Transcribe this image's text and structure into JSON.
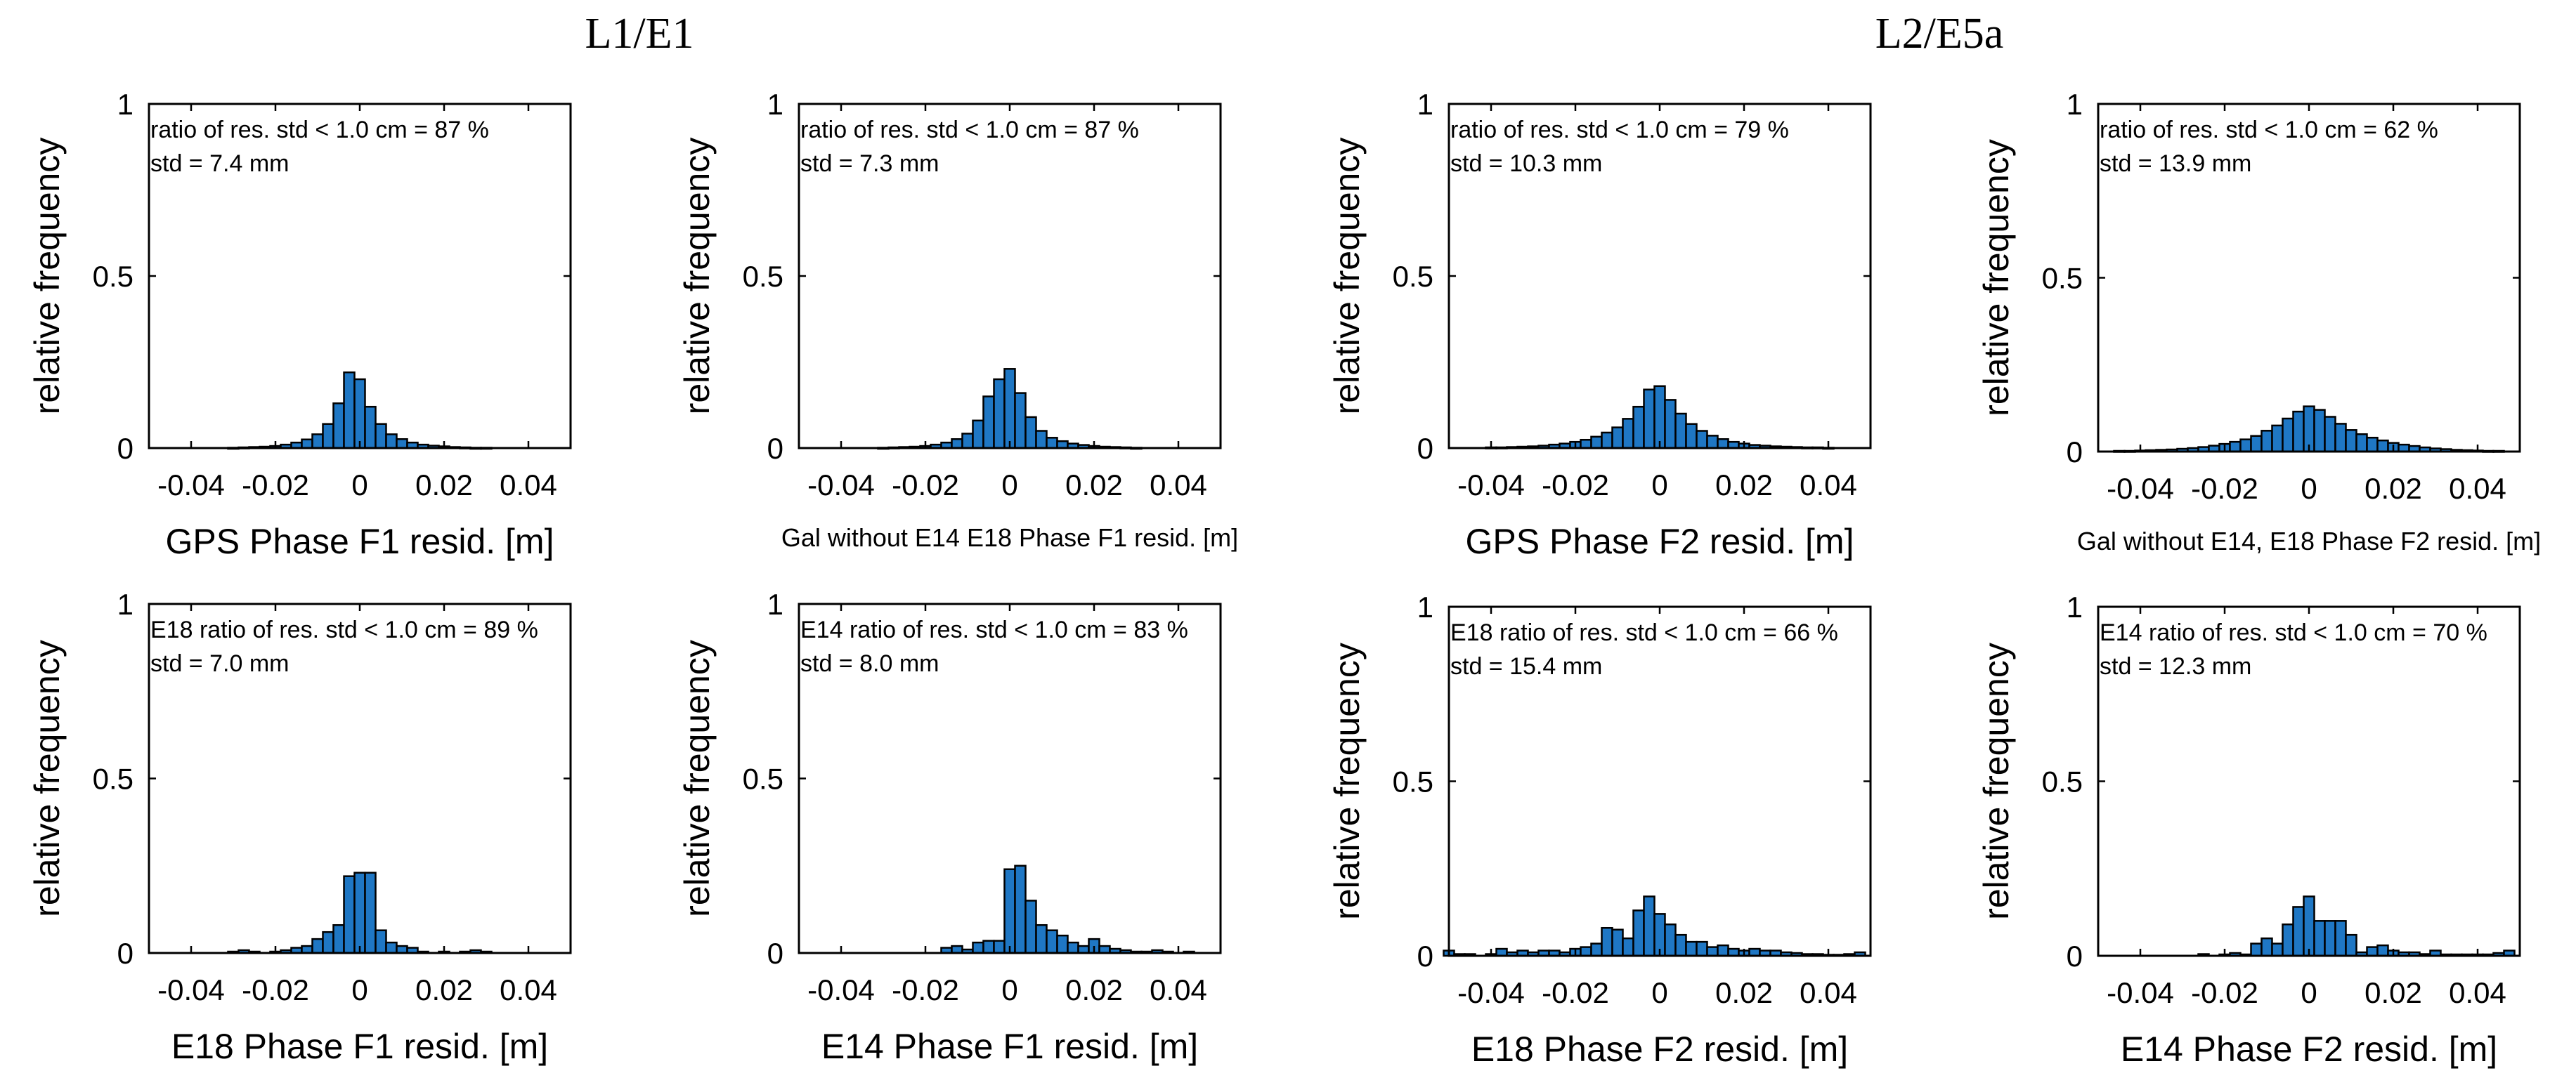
{
  "titles": [
    "L1/E1",
    "L2/E5a"
  ],
  "chart_data": [
    {
      "type": "bar",
      "group": "L1/E1",
      "xlabel": "GPS Phase F1 resid. [m]",
      "ylabel": "relative frequency",
      "xlim": [
        -0.05,
        0.05
      ],
      "ylim": [
        0,
        1
      ],
      "xticks": [
        "-0.04",
        "-0.02",
        "0",
        "0.02",
        "0.04"
      ],
      "yticks": [
        "0",
        "0.5",
        "1"
      ],
      "annotations": [
        "ratio of res. std < 1.0 cm = 87 %",
        "std = 7.4 mm"
      ],
      "bin_width": 0.0025,
      "x": [
        -0.03,
        -0.0275,
        -0.025,
        -0.0225,
        -0.02,
        -0.0175,
        -0.015,
        -0.0125,
        -0.01,
        -0.0075,
        -0.005,
        -0.0025,
        0,
        0.0025,
        0.005,
        0.0075,
        0.01,
        0.0125,
        0.015,
        0.0175,
        0.02,
        0.0225,
        0.025,
        0.0275,
        0.03
      ],
      "values": [
        0.001,
        0.002,
        0.003,
        0.004,
        0.006,
        0.01,
        0.016,
        0.025,
        0.04,
        0.07,
        0.13,
        0.22,
        0.2,
        0.12,
        0.07,
        0.04,
        0.026,
        0.016,
        0.01,
        0.007,
        0.005,
        0.003,
        0.002,
        0.001,
        0.001
      ]
    },
    {
      "type": "bar",
      "group": "L1/E1",
      "xlabel": "Gal without E14 E18 Phase F1 resid. [m]",
      "ylabel": "relative frequency",
      "xlim": [
        -0.05,
        0.05
      ],
      "ylim": [
        0,
        1
      ],
      "xticks": [
        "-0.04",
        "-0.02",
        "0",
        "0.02",
        "0.04"
      ],
      "yticks": [
        "0",
        "0.5",
        "1"
      ],
      "annotations": [
        "ratio of res. std < 1.0 cm = 87 %",
        "std = 7.3 mm"
      ],
      "bin_width": 0.0025,
      "x": [
        -0.03,
        -0.0275,
        -0.025,
        -0.0225,
        -0.02,
        -0.0175,
        -0.015,
        -0.0125,
        -0.01,
        -0.0075,
        -0.005,
        -0.0025,
        0,
        0.0025,
        0.005,
        0.0075,
        0.01,
        0.0125,
        0.015,
        0.0175,
        0.02,
        0.0225,
        0.025,
        0.0275,
        0.03
      ],
      "values": [
        0.001,
        0.002,
        0.003,
        0.004,
        0.006,
        0.01,
        0.016,
        0.026,
        0.042,
        0.08,
        0.15,
        0.2,
        0.23,
        0.16,
        0.09,
        0.05,
        0.03,
        0.02,
        0.013,
        0.009,
        0.006,
        0.004,
        0.003,
        0.002,
        0.001
      ]
    },
    {
      "type": "bar",
      "group": "L2/E5a",
      "xlabel": "GPS Phase F2 resid. [m]",
      "ylabel": "relative frequency",
      "xlim": [
        -0.05,
        0.05
      ],
      "ylim": [
        0,
        1
      ],
      "xticks": [
        "-0.04",
        "-0.02",
        "0",
        "0.02",
        "0.04"
      ],
      "yticks": [
        "0",
        "0.5",
        "1"
      ],
      "annotations": [
        "ratio of res. std < 1.0 cm = 79 %",
        "std = 10.3 mm"
      ],
      "bin_width": 0.0025,
      "x": [
        -0.04,
        -0.0375,
        -0.035,
        -0.0325,
        -0.03,
        -0.0275,
        -0.025,
        -0.0225,
        -0.02,
        -0.0175,
        -0.015,
        -0.0125,
        -0.01,
        -0.0075,
        -0.005,
        -0.0025,
        0,
        0.0025,
        0.005,
        0.0075,
        0.01,
        0.0125,
        0.015,
        0.0175,
        0.02,
        0.0225,
        0.025,
        0.0275,
        0.03,
        0.0325,
        0.035,
        0.0375,
        0.04
      ],
      "values": [
        0.002,
        0.002,
        0.003,
        0.004,
        0.005,
        0.007,
        0.01,
        0.013,
        0.018,
        0.024,
        0.033,
        0.045,
        0.06,
        0.085,
        0.12,
        0.17,
        0.18,
        0.14,
        0.1,
        0.07,
        0.05,
        0.036,
        0.026,
        0.018,
        0.013,
        0.009,
        0.007,
        0.005,
        0.004,
        0.003,
        0.002,
        0.002,
        0.001
      ]
    },
    {
      "type": "bar",
      "group": "L2/E5a",
      "xlabel": "Gal without E14, E18 Phase F2 resid. [m]",
      "ylabel": "relative frequency",
      "xlim": [
        -0.05,
        0.05
      ],
      "ylim": [
        0,
        1
      ],
      "xticks": [
        "-0.04",
        "-0.02",
        "0",
        "0.02",
        "0.04"
      ],
      "yticks": [
        "0",
        "0.5",
        "1"
      ],
      "annotations": [
        "ratio of res. std < 1.0 cm = 62 %",
        "std = 13.9 mm"
      ],
      "bin_width": 0.0025,
      "x": [
        -0.045,
        -0.0425,
        -0.04,
        -0.0375,
        -0.035,
        -0.0325,
        -0.03,
        -0.0275,
        -0.025,
        -0.0225,
        -0.02,
        -0.0175,
        -0.015,
        -0.0125,
        -0.01,
        -0.0075,
        -0.005,
        -0.0025,
        0,
        0.0025,
        0.005,
        0.0075,
        0.01,
        0.0125,
        0.015,
        0.0175,
        0.02,
        0.0225,
        0.025,
        0.0275,
        0.03,
        0.0325,
        0.035,
        0.0375,
        0.04,
        0.0425,
        0.045
      ],
      "values": [
        0.002,
        0.002,
        0.003,
        0.004,
        0.005,
        0.006,
        0.008,
        0.01,
        0.013,
        0.017,
        0.022,
        0.028,
        0.035,
        0.045,
        0.06,
        0.075,
        0.095,
        0.115,
        0.13,
        0.12,
        0.1,
        0.08,
        0.062,
        0.05,
        0.04,
        0.032,
        0.025,
        0.02,
        0.016,
        0.012,
        0.009,
        0.007,
        0.005,
        0.004,
        0.003,
        0.002,
        0.002
      ]
    },
    {
      "type": "bar",
      "group": "L1/E1",
      "xlabel": "E18 Phase F1 resid. [m]",
      "ylabel": "relative frequency",
      "xlim": [
        -0.05,
        0.05
      ],
      "ylim": [
        0,
        1
      ],
      "xticks": [
        "-0.04",
        "-0.02",
        "0",
        "0.02",
        "0.04"
      ],
      "yticks": [
        "0",
        "0.5",
        "1"
      ],
      "annotations": [
        "E18 ratio of res. std < 1.0 cm = 89 %",
        "std = 7.0 mm"
      ],
      "bin_width": 0.0025,
      "x": [
        -0.03,
        -0.0275,
        -0.025,
        -0.0225,
        -0.02,
        -0.0175,
        -0.015,
        -0.0125,
        -0.01,
        -0.0075,
        -0.005,
        -0.0025,
        0,
        0.0025,
        0.005,
        0.0075,
        0.01,
        0.0125,
        0.015,
        0.0175,
        0.02,
        0.0225,
        0.025,
        0.0275,
        0.03
      ],
      "values": [
        0.004,
        0.008,
        0.004,
        0,
        0.004,
        0.008,
        0.015,
        0.02,
        0.04,
        0.06,
        0.08,
        0.22,
        0.23,
        0.23,
        0.065,
        0.03,
        0.02,
        0.015,
        0.004,
        0,
        0.004,
        0,
        0.004,
        0.008,
        0.004
      ]
    },
    {
      "type": "bar",
      "group": "L1/E1",
      "xlabel": "E14 Phase F1 resid. [m]",
      "ylabel": "relative frequency",
      "xlim": [
        -0.05,
        0.05
      ],
      "ylim": [
        0,
        1
      ],
      "xticks": [
        "-0.04",
        "-0.02",
        "0",
        "0.02",
        "0.04"
      ],
      "yticks": [
        "0",
        "0.5",
        "1"
      ],
      "annotations": [
        "E14 ratio of res. std < 1.0 cm = 83 %",
        "std = 8.0 mm"
      ],
      "bin_width": 0.0025,
      "x": [
        -0.015,
        -0.0125,
        -0.01,
        -0.0075,
        -0.005,
        -0.0025,
        0,
        0.0025,
        0.005,
        0.0075,
        0.01,
        0.0125,
        0.015,
        0.0175,
        0.02,
        0.0225,
        0.025,
        0.0275,
        0.03,
        0.0325,
        0.035,
        0.0375,
        0.04,
        0.0425
      ],
      "values": [
        0.015,
        0.02,
        0.01,
        0.03,
        0.035,
        0.035,
        0.24,
        0.25,
        0.15,
        0.08,
        0.065,
        0.05,
        0.03,
        0.02,
        0.04,
        0.02,
        0.012,
        0.008,
        0.004,
        0.004,
        0.008,
        0.004,
        0,
        0.004
      ]
    },
    {
      "type": "bar",
      "group": "L2/E5a",
      "xlabel": "E18 Phase F2 resid. [m]",
      "ylabel": "relative frequency",
      "xlim": [
        -0.05,
        0.05
      ],
      "ylim": [
        0,
        1
      ],
      "xticks": [
        "-0.04",
        "-0.02",
        "0",
        "0.02",
        "0.04"
      ],
      "yticks": [
        "0",
        "0.5",
        "1"
      ],
      "annotations": [
        "E18 ratio of res. std < 1.0 cm = 66 %",
        "std = 15.4 mm"
      ],
      "bin_width": 0.0025,
      "x": [
        -0.05,
        -0.0475,
        -0.045,
        -0.0425,
        -0.04,
        -0.0375,
        -0.035,
        -0.0325,
        -0.03,
        -0.0275,
        -0.025,
        -0.0225,
        -0.02,
        -0.0175,
        -0.015,
        -0.0125,
        -0.01,
        -0.0075,
        -0.005,
        -0.0025,
        0,
        0.0025,
        0.005,
        0.0075,
        0.01,
        0.0125,
        0.015,
        0.0175,
        0.02,
        0.0225,
        0.025,
        0.0275,
        0.03,
        0.0325,
        0.035,
        0.0375,
        0.04,
        0.0425,
        0.045,
        0.0475
      ],
      "values": [
        0.015,
        0.005,
        0.005,
        0,
        0.005,
        0.02,
        0.01,
        0.015,
        0.01,
        0.015,
        0.015,
        0.01,
        0.02,
        0.025,
        0.035,
        0.08,
        0.075,
        0.05,
        0.13,
        0.17,
        0.12,
        0.09,
        0.06,
        0.04,
        0.04,
        0.025,
        0.03,
        0.02,
        0.015,
        0.02,
        0.015,
        0.015,
        0.01,
        0.008,
        0.005,
        0.005,
        0.003,
        0.003,
        0.005,
        0.01
      ]
    },
    {
      "type": "bar",
      "group": "L2/E5a",
      "xlabel": "E14 Phase F2 resid. [m]",
      "ylabel": "relative frequency",
      "xlim": [
        -0.05,
        0.05
      ],
      "ylim": [
        0,
        1
      ],
      "xticks": [
        "-0.04",
        "-0.02",
        "0",
        "0.02",
        "0.04"
      ],
      "yticks": [
        "0",
        "0.5",
        "1"
      ],
      "annotations": [
        "E14 ratio of res. std < 1.0 cm = 70 %",
        "std = 12.3 mm"
      ],
      "bin_width": 0.0025,
      "x": [
        -0.025,
        -0.0225,
        -0.02,
        -0.0175,
        -0.015,
        -0.0125,
        -0.01,
        -0.0075,
        -0.005,
        -0.0025,
        0,
        0.0025,
        0.005,
        0.0075,
        0.01,
        0.0125,
        0.015,
        0.0175,
        0.02,
        0.0225,
        0.025,
        0.0275,
        0.03,
        0.0325,
        0.035,
        0.0375,
        0.04,
        0.0425,
        0.045,
        0.0475
      ],
      "values": [
        0.005,
        0,
        0.004,
        0.008,
        0.004,
        0.035,
        0.05,
        0.035,
        0.09,
        0.14,
        0.17,
        0.1,
        0.1,
        0.1,
        0.06,
        0.01,
        0.025,
        0.03,
        0.015,
        0.01,
        0.01,
        0.005,
        0.015,
        0.004,
        0.004,
        0.004,
        0.004,
        0.004,
        0.008,
        0.015
      ]
    }
  ]
}
